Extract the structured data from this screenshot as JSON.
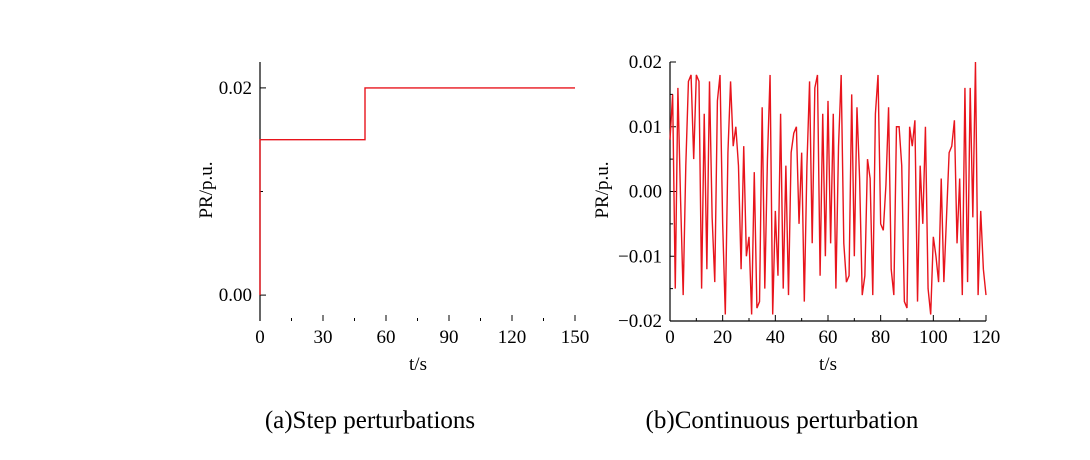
{
  "chart_data": [
    {
      "type": "line",
      "title": "",
      "caption": "(a)Step perturbations",
      "xlabel": "t/s",
      "ylabel": "PR/p.u.",
      "xlim": [
        0,
        150
      ],
      "ylim": [
        -0.0025,
        0.0225
      ],
      "xticks": [
        0,
        30,
        60,
        90,
        120,
        150
      ],
      "xtick_labels": [
        "0",
        "30",
        "60",
        "90",
        "120",
        "150"
      ],
      "yticks": [
        0.0,
        0.02
      ],
      "ytick_labels": [
        "0.00",
        "0.02"
      ],
      "color": "#e8141c",
      "grid": false,
      "series": [
        {
          "x": [
            0,
            0,
            50,
            50,
            150
          ],
          "y": [
            0.0,
            0.015,
            0.015,
            0.02,
            0.02
          ]
        }
      ]
    },
    {
      "type": "line",
      "title": "",
      "caption": "(b)Continuous perturbation",
      "xlabel": "t/s",
      "ylabel": "PR/p.u.",
      "xlim": [
        0,
        120
      ],
      "ylim": [
        -0.02,
        0.02
      ],
      "xticks": [
        0,
        20,
        40,
        60,
        80,
        100,
        120
      ],
      "xtick_labels": [
        "0",
        "20",
        "40",
        "60",
        "80",
        "100",
        "120"
      ],
      "yticks": [
        -0.02,
        -0.01,
        0.0,
        0.01,
        0.02
      ],
      "ytick_labels": [
        "−0.02",
        "−0.01",
        "0.00",
        "0.01",
        "0.02"
      ],
      "color": "#e8141c",
      "grid": false,
      "series": [
        {
          "x": [
            0,
            1,
            2,
            3,
            4,
            5,
            6,
            7,
            8,
            9,
            10,
            11,
            12,
            13,
            14,
            15,
            16,
            17,
            18,
            19,
            20,
            21,
            22,
            23,
            24,
            25,
            26,
            27,
            28,
            29,
            30,
            31,
            32,
            33,
            34,
            35,
            36,
            37,
            38,
            39,
            40,
            41,
            42,
            43,
            44,
            45,
            46,
            47,
            48,
            49,
            50,
            51,
            52,
            53,
            54,
            55,
            56,
            57,
            58,
            59,
            60,
            61,
            62,
            63,
            64,
            65,
            66,
            67,
            68,
            69,
            70,
            71,
            72,
            73,
            74,
            75,
            76,
            77,
            78,
            79,
            80,
            81,
            82,
            83,
            84,
            85,
            86,
            87,
            88,
            89,
            90,
            91,
            92,
            93,
            94,
            95,
            96,
            97,
            98,
            99,
            100,
            101,
            102,
            103,
            104,
            105,
            106,
            107,
            108,
            109,
            110,
            111,
            112,
            113,
            114,
            115,
            116,
            117,
            118,
            119,
            120
          ],
          "y": [
            0.008,
            0.015,
            -0.015,
            0.016,
            -0.001,
            -0.016,
            0.004,
            0.017,
            0.018,
            0.005,
            0.018,
            0.017,
            -0.015,
            0.012,
            -0.012,
            0.017,
            -0.004,
            -0.014,
            0.014,
            0.018,
            -0.005,
            -0.019,
            0.006,
            0.017,
            0.007,
            0.01,
            0.004,
            -0.012,
            0.007,
            -0.01,
            -0.007,
            -0.019,
            0.003,
            -0.018,
            -0.017,
            0.013,
            -0.015,
            0.005,
            0.018,
            -0.019,
            -0.003,
            -0.013,
            0.012,
            -0.015,
            0.004,
            -0.016,
            0.006,
            0.009,
            0.01,
            -0.005,
            0.006,
            -0.017,
            0.004,
            0.017,
            -0.008,
            0.016,
            0.018,
            -0.013,
            0.012,
            -0.01,
            0.014,
            -0.008,
            0.012,
            -0.015,
            0.007,
            0.018,
            -0.008,
            -0.014,
            -0.013,
            0.015,
            -0.01,
            0.013,
            0.002,
            -0.016,
            -0.013,
            0.005,
            0.002,
            -0.016,
            0.012,
            0.018,
            -0.005,
            -0.006,
            0.001,
            0.013,
            -0.012,
            -0.016,
            0.01,
            0.01,
            0.004,
            -0.017,
            -0.018,
            0.01,
            0.007,
            0.011,
            -0.017,
            0.004,
            -0.005,
            0.01,
            -0.015,
            -0.019,
            -0.007,
            -0.01,
            -0.014,
            0.002,
            -0.014,
            -0.004,
            0.006,
            0.007,
            0.011,
            -0.008,
            0.002,
            -0.016,
            0.016,
            -0.014,
            0.016,
            -0.004,
            0.02,
            -0.016,
            -0.003,
            -0.012,
            -0.016
          ]
        }
      ]
    }
  ]
}
